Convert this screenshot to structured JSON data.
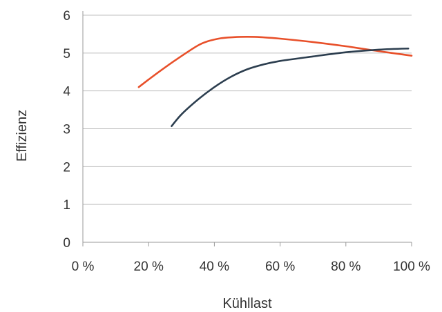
{
  "chart_data": {
    "type": "line",
    "title": "",
    "xlabel": "Kühllast",
    "ylabel": "Effizienz",
    "xlim": [
      0,
      100
    ],
    "ylim": [
      0,
      6
    ],
    "x_ticks": [
      0,
      20,
      40,
      60,
      80,
      100
    ],
    "x_tick_labels": [
      "0 %",
      "20 %",
      "40 %",
      "60 %",
      "80 %",
      "100 %"
    ],
    "y_ticks": [
      0,
      1,
      2,
      3,
      4,
      5,
      6
    ],
    "y_tick_labels": [
      "0",
      "1",
      "2",
      "3",
      "4",
      "5",
      "6"
    ],
    "grid": "horizontal",
    "legend": "none",
    "series": [
      {
        "color": "#e8502a",
        "x": [
          17,
          20,
          25,
          30,
          35,
          38,
          42,
          46,
          50,
          54,
          60,
          70,
          80,
          90,
          100
        ],
        "y": [
          4.1,
          4.3,
          4.62,
          4.92,
          5.2,
          5.31,
          5.39,
          5.42,
          5.43,
          5.42,
          5.38,
          5.29,
          5.18,
          5.05,
          4.93
        ]
      },
      {
        "color": "#2c3e4f",
        "x": [
          27,
          30,
          35,
          40,
          45,
          50,
          55,
          60,
          70,
          80,
          90,
          99
        ],
        "y": [
          3.07,
          3.38,
          3.77,
          4.1,
          4.37,
          4.57,
          4.7,
          4.79,
          4.91,
          5.02,
          5.09,
          5.12
        ]
      }
    ]
  }
}
